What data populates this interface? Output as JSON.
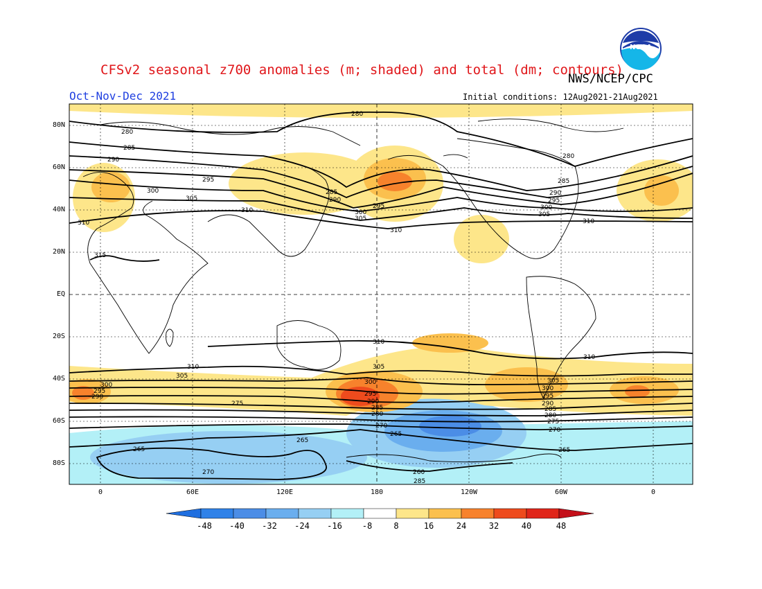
{
  "header": {
    "title": "CFSv2 seasonal z700 anomalies (m; shaded) and total (dm; contours)",
    "agency": "NWS/NCEP/CPC",
    "period": "Oct-Nov-Dec 2021",
    "initial_conditions": "Initial conditions: 12Aug2021-21Aug2021",
    "logo_text": "NOAA"
  },
  "axes": {
    "lat_labels": [
      "80N",
      "60N",
      "40N",
      "20N",
      "EQ",
      "20S",
      "40S",
      "60S",
      "80S"
    ],
    "lon_labels": [
      "0",
      "60E",
      "120E",
      "180",
      "120W",
      "60W",
      "0"
    ]
  },
  "colors": {
    "title": "#e0161a",
    "period": "#1f3fe0",
    "pos_8_16": "#fde68a",
    "pos_16_24": "#fbc04e",
    "pos_24_32": "#f7822c",
    "pos_32_40": "#ee4b1d",
    "neg_8_16": "#b3f0f7",
    "neg_16_24": "#96cff3",
    "neg_24_32": "#6aaeee",
    "neg_32_40": "#4b8de6"
  },
  "colorbar": {
    "labels": [
      "-48",
      "-40",
      "-32",
      "-24",
      "-16",
      "-8",
      "8",
      "16",
      "24",
      "32",
      "40",
      "48"
    ],
    "colors": [
      "#1f6fe0",
      "#2f82e8",
      "#4b8de6",
      "#6aaeee",
      "#96cff3",
      "#b3f0f7",
      "#ffffff",
      "#fde68a",
      "#fbc04e",
      "#f7822c",
      "#ee4b1d",
      "#e0261a",
      "#c4101a"
    ]
  },
  "contour_labels": {
    "l280": "280",
    "l285": "285",
    "l290": "290",
    "l295": "295",
    "l300": "300",
    "l305": "305",
    "l310": "310",
    "l315": "315",
    "l275": "275",
    "l270": "270",
    "l265": "265",
    "l260": "260"
  }
}
